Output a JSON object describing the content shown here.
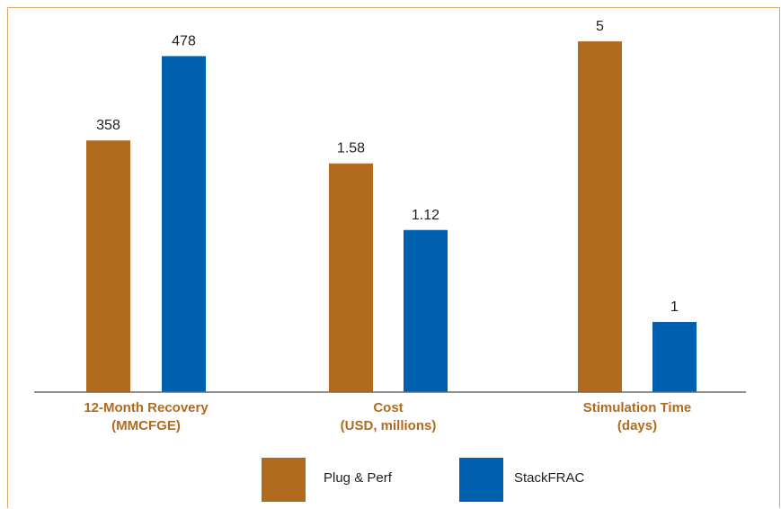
{
  "chart_data": {
    "type": "bar",
    "categories": [
      [
        "12-Month Recovery",
        "(MMCFGE)"
      ],
      [
        "Cost",
        "(USD, millions)"
      ],
      [
        "Stimulation Time",
        "(days)"
      ]
    ],
    "series": [
      {
        "name": "Plug & Perf",
        "values": [
          358,
          1.58,
          5
        ],
        "labels": [
          "358",
          "1.58",
          "5"
        ]
      },
      {
        "name": "StackFRAC",
        "values": [
          478,
          1.12,
          1
        ],
        "labels": [
          "478",
          "1.12",
          "1"
        ]
      }
    ],
    "title": "",
    "xlabel": "",
    "ylabel": "",
    "grid": false,
    "legend": "bottom",
    "colors": {
      "plug_perf": "#b06b1e",
      "stackfrac": "#0060b0",
      "category_text": "#b06b1e",
      "axis": "#6b6b6b",
      "frame": "#d9a66a"
    }
  }
}
